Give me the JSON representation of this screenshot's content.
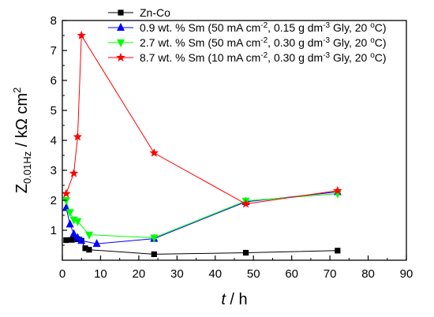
{
  "chart_data": {
    "type": "line",
    "xlabel": {
      "main": "t",
      "rest": " / h"
    },
    "ylabel": {
      "main": "Z",
      "sub": "0.01Hz",
      "rest": " / kΩ cm",
      "sup": "2"
    },
    "xlim": [
      0,
      90
    ],
    "ylim": [
      0,
      8
    ],
    "xticks": [
      0,
      10,
      20,
      30,
      40,
      50,
      60,
      70,
      80,
      90
    ],
    "yticks": [
      1,
      2,
      3,
      4,
      5,
      6,
      7,
      8
    ],
    "grid": false,
    "legend_position": "top-right",
    "series": [
      {
        "name": "Zn-Co",
        "name_parts": [
          {
            "t": "Zn-Co"
          }
        ],
        "color": "#000000",
        "marker": "square",
        "x": [
          1,
          2.5,
          4,
          5,
          6,
          7,
          24,
          48,
          72
        ],
        "y": [
          0.67,
          0.68,
          0.7,
          0.65,
          0.4,
          0.35,
          0.2,
          0.25,
          0.32
        ]
      },
      {
        "name": "0.9 wt. % Sm (50 mA cm-2, 0.15 g dm-3 Gly, 20 oC)",
        "name_parts": [
          {
            "t": "0.9 wt. % Sm (50 mA cm"
          },
          {
            "t": "-2",
            "sup": true
          },
          {
            "t": ", 0.15 g dm"
          },
          {
            "t": "-3",
            "sup": true
          },
          {
            "t": " Gly, 20 "
          },
          {
            "t": "o",
            "sup": true
          },
          {
            "t": "C)"
          }
        ],
        "color": "#0000ff",
        "marker": "triangle-up",
        "x": [
          1,
          2,
          3,
          4,
          5,
          9,
          24,
          48,
          72
        ],
        "y": [
          1.75,
          1.2,
          0.88,
          0.75,
          0.65,
          0.55,
          0.72,
          1.95,
          2.28
        ]
      },
      {
        "name": "2.7 wt. % Sm (50 mA cm-2, 0.30 g dm-3 Gly, 20 oC)",
        "name_parts": [
          {
            "t": "2.7 wt. % Sm (50 mA cm"
          },
          {
            "t": "-2",
            "sup": true
          },
          {
            "t": ", 0.30 g dm"
          },
          {
            "t": "-3",
            "sup": true
          },
          {
            "t": " Gly, 20 "
          },
          {
            "t": "o",
            "sup": true
          },
          {
            "t": "C)"
          }
        ],
        "color": "#00ff00",
        "marker": "triangle-down",
        "x": [
          1,
          2,
          3,
          4,
          7,
          24,
          48,
          72
        ],
        "y": [
          2.0,
          1.6,
          1.35,
          1.3,
          0.85,
          0.75,
          1.98,
          2.22
        ]
      },
      {
        "name": "8.7 wt. % Sm (10 mA cm-2, 0.30 g dm-3 Gly, 20 oC)",
        "name_parts": [
          {
            "t": "8.7 wt. % Sm (10 mA cm"
          },
          {
            "t": "-2",
            "sup": true
          },
          {
            "t": ", 0.30 g dm"
          },
          {
            "t": "-3",
            "sup": true
          },
          {
            "t": " Gly, 20 "
          },
          {
            "t": "o",
            "sup": true
          },
          {
            "t": "C)"
          }
        ],
        "color": "#ff0000",
        "marker": "star",
        "x": [
          1,
          3,
          4,
          5,
          24,
          48,
          72
        ],
        "y": [
          2.22,
          2.9,
          4.12,
          7.5,
          3.58,
          1.88,
          2.32
        ]
      }
    ]
  }
}
